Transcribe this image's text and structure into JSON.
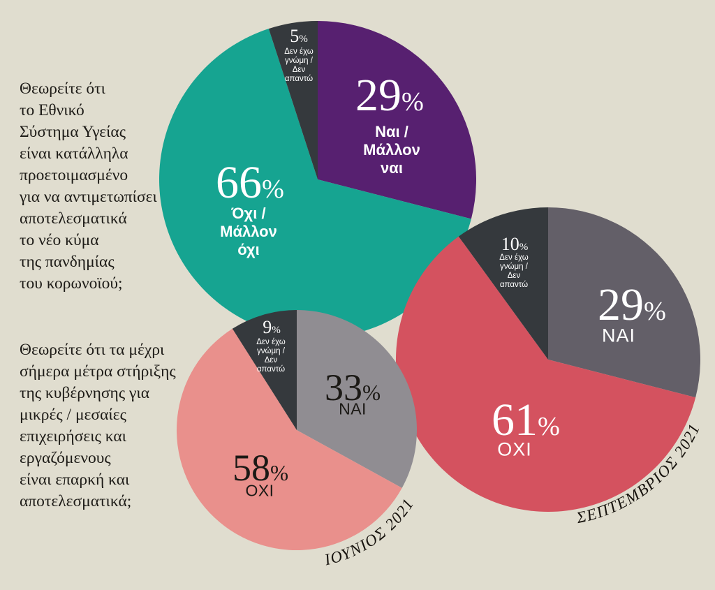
{
  "background_color": "#e0ddcf",
  "percent_sign": "%",
  "questions": [
    {
      "id": "nhs-preparedness",
      "lines": [
        "Θεωρείτε ότι",
        "το Εθνικό",
        "Σύστημα Υγείας",
        "είναι κατάλληλα",
        "προετοιμασμένο",
        "για να αντιμετωπίσει",
        "αποτελεσματικά",
        "το νέο κύμα",
        "της πανδημίας",
        "του κορωνοϊού;"
      ]
    },
    {
      "id": "support-measures",
      "lines": [
        "Θεωρείτε ότι τα μέχρι",
        "σήμερα μέτρα στήριξης",
        "της κυβέρνησης για",
        "μικρές / μεσαίες",
        "επιχειρήσεις και",
        "εργαζόμενους",
        "είναι επαρκή και",
        "αποτελεσματικά;"
      ]
    }
  ],
  "chart_data": [
    {
      "type": "pie",
      "id": "nhs-pie",
      "question_index": 0,
      "unit": "%",
      "start_angle_deg": 0,
      "date_label": "",
      "slices": [
        {
          "key": "yes",
          "value": 29,
          "label": "Ναι / Μάλλον ναι",
          "label_lines": [
            "Ναι /",
            "Μάλλον",
            "ναι"
          ],
          "color": "#572070",
          "label_color": "#ffffff"
        },
        {
          "key": "no",
          "value": 66,
          "label": "Όχι / Μάλλον όχι",
          "label_lines": [
            "Όχι /",
            "Μάλλον",
            "όχι"
          ],
          "color": "#16a491",
          "label_color": "#ffffff"
        },
        {
          "key": "dk",
          "value": 5,
          "label": "Δεν έχω γνώμη / Δεν απαντώ",
          "label_lines": [
            "Δεν έχω",
            "γνώμη /",
            "Δεν",
            "απαντώ"
          ],
          "color": "#35393d",
          "label_color": "#ffffff"
        }
      ]
    },
    {
      "type": "pie",
      "id": "september-pie",
      "question_index": 1,
      "unit": "%",
      "start_angle_deg": 0,
      "date_label": "ΣΕΠΤΕΜΒΡΙΟΣ 2021",
      "slices": [
        {
          "key": "yes",
          "value": 29,
          "label": "ΝΑΙ",
          "label_lines": [
            "ΝΑΙ"
          ],
          "color": "#635f68",
          "label_color": "#ffffff"
        },
        {
          "key": "no",
          "value": 61,
          "label": "ΟΧΙ",
          "label_lines": [
            "ΟΧΙ"
          ],
          "color": "#d4525f",
          "label_color": "#ffffff"
        },
        {
          "key": "dk",
          "value": 10,
          "label": "Δεν έχω γνώμη / Δεν απαντώ",
          "label_lines": [
            "Δεν έχω",
            "γνώμη /",
            "Δεν",
            "απαντώ"
          ],
          "color": "#35393d",
          "label_color": "#ffffff"
        }
      ]
    },
    {
      "type": "pie",
      "id": "june-pie",
      "question_index": 1,
      "unit": "%",
      "start_angle_deg": 0,
      "date_label": "ΙΟΥΝΙΟΣ 2021",
      "slices": [
        {
          "key": "yes",
          "value": 33,
          "label": "ΝΑΙ",
          "label_lines": [
            "ΝΑΙ"
          ],
          "color": "#908d92",
          "label_color": "#1b1915"
        },
        {
          "key": "no",
          "value": 58,
          "label": "ΟΧΙ",
          "label_lines": [
            "ΟΧΙ"
          ],
          "color": "#e9908c",
          "label_color": "#1b1915"
        },
        {
          "key": "dk",
          "value": 9,
          "label": "Δεν έχω γνώμη / Δεν απαντώ",
          "label_lines": [
            "Δεν έχω",
            "γνώμη /",
            "Δεν",
            "απαντώ"
          ],
          "color": "#35393d",
          "label_color": "#ffffff"
        }
      ]
    }
  ]
}
